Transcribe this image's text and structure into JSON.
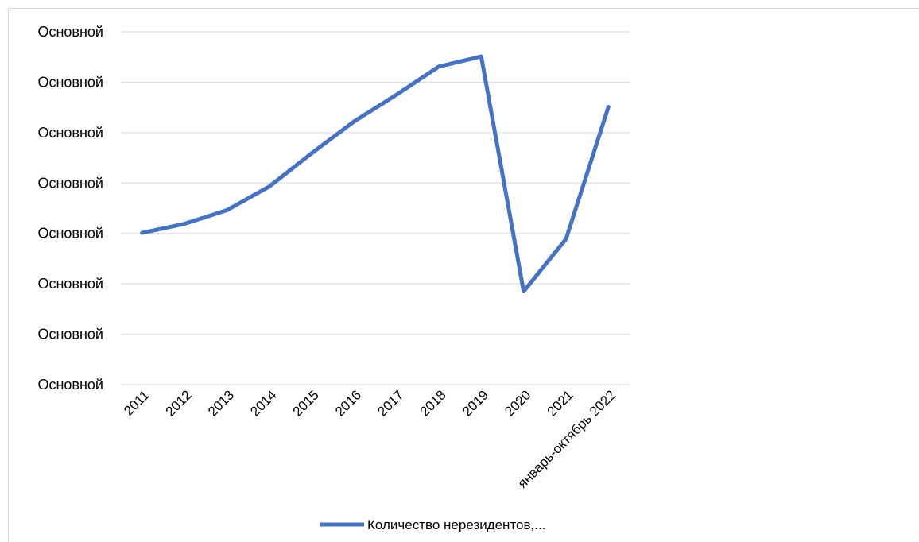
{
  "chart_data": {
    "type": "line",
    "categories": [
      "2011",
      "2012",
      "2013",
      "2014",
      "2015",
      "2016",
      "2017",
      "2018",
      "2019",
      "2020",
      "2021",
      "январь-октябрь 2022"
    ],
    "series": [
      {
        "name": "Количество нерезидентов,...",
        "values": [
          3.01,
          3.19,
          3.46,
          3.93,
          4.59,
          5.22,
          5.75,
          6.31,
          6.51,
          1.85,
          2.89,
          5.51
        ]
      }
    ],
    "y_tick_labels": [
      "Основной",
      "Основной",
      "Основной",
      "Основной",
      "Основной",
      "Основной",
      "Основной",
      "Основной"
    ],
    "ylim": [
      0,
      7
    ],
    "grid": true,
    "legend": "bottom",
    "colors": {
      "series": "#4472c4",
      "grid": "#d9d9d9",
      "text": "#000000",
      "frame": "#d9d9d9"
    }
  }
}
